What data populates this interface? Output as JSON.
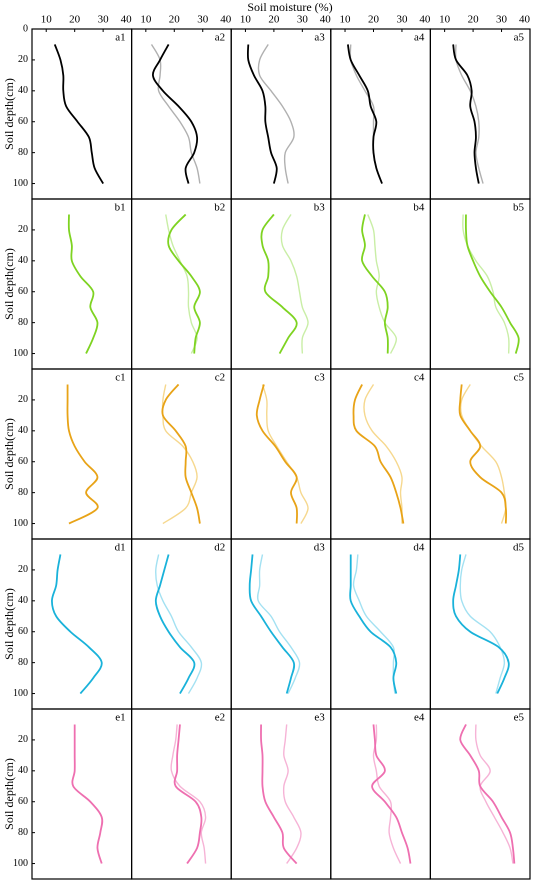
{
  "chart_data": {
    "type": "line",
    "title": "Soil moisture  (%)",
    "y_label": "Soil depth(cm)",
    "xlim": [
      5,
      40
    ],
    "xticks": [
      10,
      20,
      30,
      40
    ],
    "ylim": [
      0,
      110
    ],
    "yticks": [
      0,
      20,
      40,
      60,
      80,
      100
    ],
    "depths": [
      10,
      20,
      30,
      40,
      50,
      60,
      70,
      80,
      90,
      100
    ],
    "panels": [
      {
        "label": "a1",
        "series": [
          {
            "color": "#000000",
            "values": [
              13,
              15,
              16,
              16,
              17,
              21,
              25,
              26,
              27,
              30
            ]
          }
        ]
      },
      {
        "label": "a2",
        "series": [
          {
            "color": "#000000",
            "values": [
              18,
              15,
              12.5,
              16,
              21.5,
              26,
              28,
              27,
              24,
              25
            ]
          },
          {
            "color": "#b0b0b0",
            "values": [
              12,
              15,
              15,
              14.5,
              18,
              22,
              25,
              26,
              28,
              29
            ]
          }
        ]
      },
      {
        "label": "a3",
        "series": [
          {
            "color": "#000000",
            "values": [
              11,
              11,
              13,
              16,
              17,
              17,
              18,
              19,
              21,
              20
            ]
          },
          {
            "color": "#b0b0b0",
            "values": [
              18,
              15,
              15,
              19,
              23,
              26,
              27,
              24,
              24,
              25
            ]
          }
        ]
      },
      {
        "label": "a4",
        "series": [
          {
            "color": "#000000",
            "values": [
              11,
              12,
              15,
              18,
              19,
              21,
              20,
              20,
              21,
              23
            ]
          },
          {
            "color": "#b0b0b0",
            "values": [
              12,
              12,
              14,
              17,
              20,
              20,
              20,
              20,
              21,
              23
            ]
          }
        ]
      },
      {
        "label": "a5",
        "series": [
          {
            "color": "#000000",
            "values": [
              13,
              14,
              18,
              19.5,
              19,
              20.5,
              21,
              20.5,
              21,
              22
            ]
          },
          {
            "color": "#b0b0b0",
            "values": [
              14,
              14,
              16,
              19,
              21,
              22,
              22,
              21,
              22,
              23.5
            ]
          }
        ]
      },
      {
        "label": "b1",
        "series": [
          {
            "color": "#7ed321",
            "values": [
              18,
              18,
              19,
              19,
              22,
              26.5,
              25.5,
              28,
              26.5,
              24
            ]
          }
        ]
      },
      {
        "label": "b2",
        "series": [
          {
            "color": "#7ed321",
            "values": [
              24,
              19,
              18,
              21.5,
              26,
              29,
              27,
              29,
              27.5,
              27
            ]
          },
          {
            "color": "#c9eea6",
            "values": [
              17,
              18,
              19.5,
              22,
              24.5,
              25,
              25,
              26,
              28,
              26
            ]
          }
        ]
      },
      {
        "label": "b3",
        "series": [
          {
            "color": "#7ed321",
            "values": [
              20,
              16,
              16,
              18,
              18,
              17,
              23,
              28,
              25,
              22
            ]
          },
          {
            "color": "#c9eea6",
            "values": [
              26,
              23,
              23,
              26,
              28,
              29,
              30,
              32,
              30,
              30
            ]
          }
        ]
      },
      {
        "label": "b4",
        "series": [
          {
            "color": "#7ed321",
            "values": [
              17,
              16,
              17,
              16,
              19.5,
              24,
              25,
              24,
              25,
              25
            ]
          },
          {
            "color": "#c9eea6",
            "values": [
              18,
              20,
              20.5,
              21,
              22,
              21,
              22,
              24,
              28,
              26
            ]
          }
        ]
      },
      {
        "label": "b5",
        "series": [
          {
            "color": "#7ed321",
            "values": [
              17.5,
              17.5,
              18,
              20,
              22.5,
              26,
              30,
              33,
              36,
              35
            ]
          },
          {
            "color": "#c9eea6",
            "values": [
              16.5,
              16.5,
              18,
              21,
              25,
              27,
              28,
              31,
              32.5,
              32.5
            ]
          }
        ]
      },
      {
        "label": "c1",
        "series": [
          {
            "color": "#e8a317",
            "values": [
              17.5,
              17.5,
              17.5,
              18,
              20,
              23.5,
              28,
              24,
              28,
              18
            ]
          }
        ]
      },
      {
        "label": "c2",
        "series": [
          {
            "color": "#e8a317",
            "values": [
              21.5,
              17,
              16,
              20.5,
              24,
              24,
              24,
              26,
              28,
              29
            ]
          },
          {
            "color": "#f6d88e",
            "values": [
              17,
              16,
              16,
              17,
              23,
              26.5,
              28,
              26,
              24,
              16
            ]
          }
        ]
      },
      {
        "label": "c3",
        "series": [
          {
            "color": "#e8a317",
            "values": [
              16.5,
              15,
              14,
              16,
              20.5,
              24,
              28,
              26,
              28,
              28
            ]
          },
          {
            "color": "#f6d88e",
            "values": [
              16,
              17.5,
              17.5,
              18,
              21,
              24.5,
              28,
              29.5,
              32,
              29.5
            ]
          }
        ]
      },
      {
        "label": "c4",
        "series": [
          {
            "color": "#e8a317",
            "values": [
              16,
              13.5,
              13,
              14,
              20.5,
              22.5,
              26,
              28,
              29.5,
              30.5
            ]
          },
          {
            "color": "#f6d88e",
            "values": [
              20,
              17,
              17,
              19.5,
              24.5,
              28,
              30,
              29.5,
              30,
              30
            ]
          }
        ]
      },
      {
        "label": "c5",
        "series": [
          {
            "color": "#e8a317",
            "values": [
              16,
              15.5,
              15.5,
              19,
              22.5,
              19,
              22.5,
              30,
              31.5,
              31.5
            ]
          },
          {
            "color": "#f6d88e",
            "values": [
              19,
              16,
              16,
              19,
              23,
              28,
              30,
              31,
              31.5,
              30
            ]
          }
        ]
      },
      {
        "label": "d1",
        "series": [
          {
            "color": "#19b2da",
            "values": [
              15,
              14,
              13.5,
              12,
              13.5,
              18.5,
              25,
              29.5,
              26.5,
              22
            ]
          }
        ]
      },
      {
        "label": "d2",
        "series": [
          {
            "color": "#19b2da",
            "values": [
              18,
              16.5,
              15,
              13.5,
              15,
              18,
              22,
              27,
              25,
              22
            ]
          },
          {
            "color": "#a3e1f2",
            "values": [
              14.5,
              13.5,
              14,
              16,
              19,
              21.5,
              26,
              29.5,
              28,
              25
            ]
          }
        ]
      },
      {
        "label": "d3",
        "series": [
          {
            "color": "#19b2da",
            "values": [
              12.5,
              12,
              11.5,
              12,
              15.5,
              19,
              23,
              27,
              26,
              24.5
            ]
          },
          {
            "color": "#a3e1f2",
            "values": [
              16,
              15,
              15,
              14.5,
              19,
              22,
              26,
              29,
              27.5,
              25
            ]
          }
        ]
      },
      {
        "label": "d4",
        "series": [
          {
            "color": "#19b2da",
            "values": [
              12,
              12,
              12,
              12,
              15,
              19,
              26,
              28,
              27,
              28
            ]
          },
          {
            "color": "#a3e1f2",
            "values": [
              14.5,
              14,
              13,
              15,
              17.5,
              22.5,
              27,
              27,
              27,
              27.5
            ]
          }
        ]
      },
      {
        "label": "d5",
        "series": [
          {
            "color": "#19b2da",
            "values": [
              15.5,
              15,
              14,
              13,
              14,
              19,
              29,
              32.5,
              31,
              28.5
            ]
          },
          {
            "color": "#a3e1f2",
            "values": [
              17.5,
              16,
              15.5,
              16,
              19,
              26,
              29.5,
              31,
              29.5,
              28
            ]
          }
        ]
      },
      {
        "label": "e1",
        "series": [
          {
            "color": "#ee6fb0",
            "values": [
              20,
              20,
              20,
              20,
              19.5,
              25.5,
              29.5,
              29,
              28,
              29.5
            ]
          }
        ]
      },
      {
        "label": "e2",
        "series": [
          {
            "color": "#ee6fb0",
            "values": [
              22,
              21.5,
              21,
              21,
              20.5,
              27.5,
              29.5,
              29,
              28,
              24.5
            ]
          },
          {
            "color": "#f6b3d6",
            "values": [
              21,
              20.5,
              19.5,
              19,
              22,
              29,
              31,
              29.5,
              30.5,
              31
            ]
          }
        ]
      },
      {
        "label": "e3",
        "series": [
          {
            "color": "#ee6fb0",
            "values": [
              15.5,
              15.5,
              16,
              16,
              16,
              17,
              20,
              23,
              23.5,
              28
            ]
          },
          {
            "color": "#f6b3d6",
            "values": [
              24.5,
              24,
              23.5,
              25,
              23.5,
              24,
              27,
              29.5,
              28,
              24.5
            ]
          }
        ]
      },
      {
        "label": "e4",
        "series": [
          {
            "color": "#ee6fb0",
            "values": [
              20,
              20.5,
              21,
              24,
              19.5,
              24,
              28,
              30,
              32,
              33
            ]
          },
          {
            "color": "#f6b3d6",
            "values": [
              21,
              21,
              20,
              21,
              22,
              26,
              26,
              25.5,
              27,
              29.5
            ]
          }
        ]
      },
      {
        "label": "e5",
        "series": [
          {
            "color": "#ee6fb0",
            "values": [
              17.5,
              15.5,
              19,
              22,
              22.5,
              27,
              30,
              33,
              34,
              34.5
            ]
          },
          {
            "color": "#f6b3d6",
            "values": [
              21,
              21,
              22.5,
              26,
              22.5,
              24.5,
              27.5,
              30.5,
              33,
              34
            ]
          }
        ]
      }
    ]
  }
}
